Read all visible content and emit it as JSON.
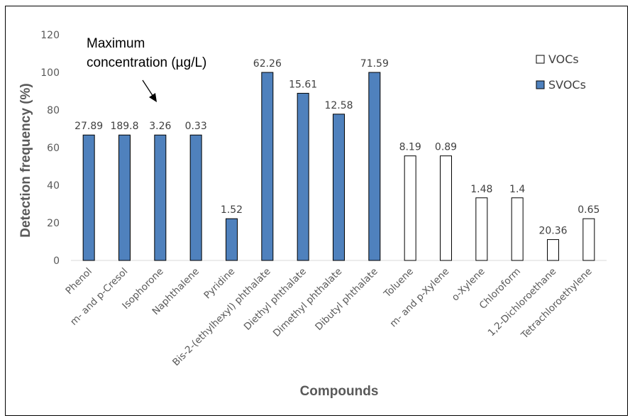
{
  "chart_data": {
    "type": "bar",
    "xlabel": "Compounds",
    "ylabel": "Detection frequency (%)",
    "ylim": [
      0,
      120
    ],
    "yticks": [
      0,
      20,
      40,
      60,
      80,
      100,
      120
    ],
    "grid": false,
    "legend_position": "top-right",
    "annotation": {
      "line1": "Maximum",
      "line2": "concentration (µg/L)"
    },
    "series": [
      {
        "name": "VOCs",
        "color": "#ffffff",
        "stroke": "#000000"
      },
      {
        "name": "SVOCs",
        "color": "#4f81bd",
        "stroke": "#000000"
      }
    ],
    "categories": [
      "Phenol",
      "m- and p-Cresol",
      "Isophorone",
      "Naphthalene",
      "Pyridine",
      "Bis-2-(ethylhexyl) phthalate",
      "Diethyl phthalate",
      "Dimethyl phthalate",
      "Dibutyl phthalate",
      "Toluene",
      "m- and p-Xylene",
      "o-Xylene",
      "Chloroform",
      "1,2-Dichloroethane",
      "Tetrachloroethylene"
    ],
    "values": [
      66.7,
      66.7,
      66.7,
      66.7,
      22.2,
      100,
      88.9,
      77.8,
      100,
      55.6,
      55.6,
      33.3,
      33.3,
      11.1,
      22.2
    ],
    "group": [
      "SVOCs",
      "SVOCs",
      "SVOCs",
      "SVOCs",
      "SVOCs",
      "SVOCs",
      "SVOCs",
      "SVOCs",
      "SVOCs",
      "VOCs",
      "VOCs",
      "VOCs",
      "VOCs",
      "VOCs",
      "VOCs"
    ],
    "data_labels": [
      "27.89",
      "189.8",
      "3.26",
      "0.33",
      "1.52",
      "62.26",
      "15.61",
      "12.58",
      "71.59",
      "8.19",
      "0.89",
      "1.48",
      "1.4",
      "20.36",
      "0.65"
    ]
  }
}
